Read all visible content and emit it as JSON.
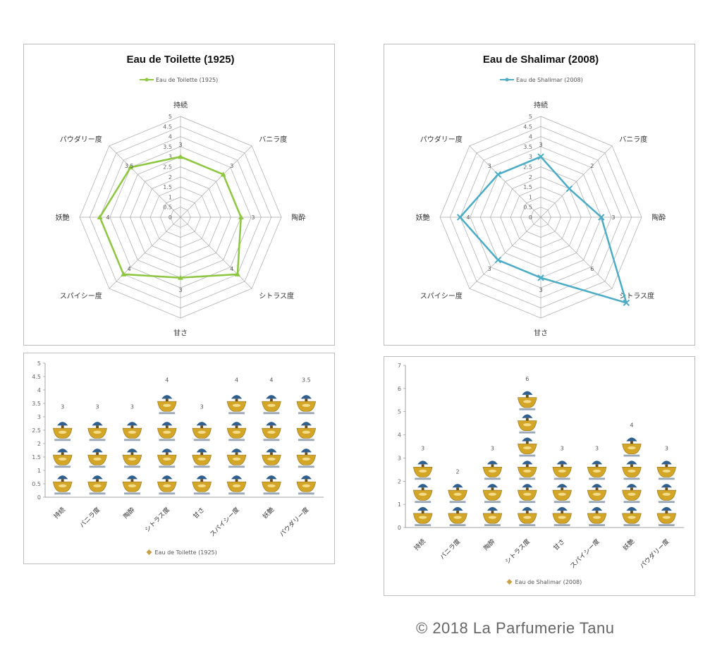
{
  "copyright": "© 2018 La Parfumerie Tanu",
  "colors": {
    "radar1": "#8dc63f",
    "radar2": "#4bacc6",
    "grid": "#9a9a9a",
    "bottle_gold": "#d4a628",
    "bottle_cap": "#2f5f8f",
    "legend_bar": "#c8a04a"
  },
  "icon": "perfume-bottle-icon",
  "chart_data": [
    {
      "type": "radar",
      "title": "Eau de Toilette (1925)",
      "legend": "Eau de Toilette (1925)",
      "axes": [
        "持続",
        "バニラ度",
        "陶酔",
        "シトラス度",
        "甘さ",
        "スパイシー度",
        "妖艶",
        "パウダリー度"
      ],
      "ticks": [
        "0",
        "0.5",
        "1",
        "1.5",
        "2",
        "2.5",
        "3",
        "3.5",
        "4",
        "4.5",
        "5"
      ],
      "range": [
        0,
        5
      ],
      "series": [
        {
          "name": "Eau de Toilette (1925)",
          "values": [
            3,
            3,
            3,
            4,
            3,
            4,
            4,
            3.5
          ]
        }
      ],
      "value_labels": [
        "3",
        "3",
        "3",
        "4",
        "3",
        "4",
        "4",
        "3.5"
      ]
    },
    {
      "type": "radar",
      "title": "Eau de Shalimar (2008)",
      "legend": "Eau de Shalimar (2008)",
      "axes": [
        "持続",
        "バニラ度",
        "陶酔",
        "シトラス度",
        "甘さ",
        "スパイシー度",
        "妖艶",
        "パウダリー度"
      ],
      "ticks": [
        "0",
        "0.5",
        "1",
        "1.5",
        "2",
        "2.5",
        "3",
        "3.5",
        "4",
        "4.5",
        "5"
      ],
      "range": [
        0,
        5
      ],
      "series": [
        {
          "name": "Eau de Shalimar (2008)",
          "values": [
            3,
            2,
            3,
            6,
            3,
            3,
            4,
            3
          ]
        }
      ],
      "value_labels": [
        "3",
        "2",
        "3",
        "6",
        "3",
        "3",
        "4",
        "3"
      ]
    },
    {
      "type": "bar",
      "legend": "Eau de Toilette (1925)",
      "categories": [
        "持続",
        "バニラ度",
        "陶酔",
        "シトラス度",
        "甘さ",
        "スパイシー度",
        "妖艶",
        "パウダリー度"
      ],
      "values": [
        3,
        3,
        3,
        4,
        3,
        4,
        4,
        3.5
      ],
      "value_labels": [
        "3",
        "3",
        "3",
        "4",
        "3",
        "4",
        "4",
        "3.5"
      ],
      "yticks": [
        "0",
        "0.5",
        "1",
        "1.5",
        "2",
        "2.5",
        "3",
        "3.5",
        "4",
        "4.5",
        "5"
      ],
      "ylim": [
        0,
        5
      ]
    },
    {
      "type": "bar",
      "legend": "Eau de Shalimar (2008)",
      "categories": [
        "持続",
        "バニラ度",
        "陶酔",
        "シトラス度",
        "甘さ",
        "スパイシー度",
        "妖艶",
        "パウダリー度"
      ],
      "values": [
        3,
        2,
        3,
        6,
        3,
        3,
        4,
        3
      ],
      "value_labels": [
        "3",
        "2",
        "3",
        "6",
        "3",
        "3",
        "4",
        "3"
      ],
      "yticks": [
        "0",
        "1",
        "2",
        "3",
        "4",
        "5",
        "6",
        "7"
      ],
      "ylim": [
        0,
        7
      ]
    }
  ]
}
